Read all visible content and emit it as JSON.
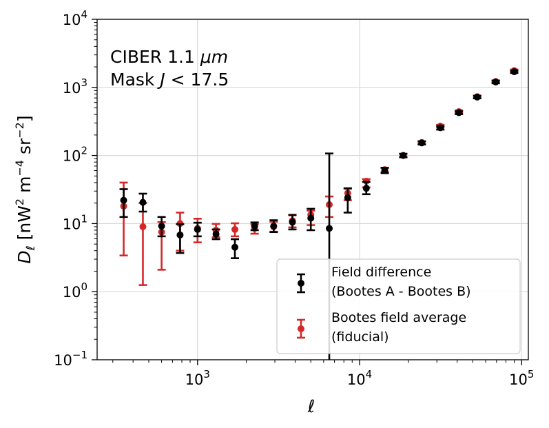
{
  "chart_data": {
    "type": "scatter",
    "title": "",
    "annotation": {
      "line1_prefix": "CIBER 1.1 ",
      "line1_unit": "μm",
      "line2_prefix": "Mask ",
      "line2_var": "J",
      "line2_suffix": " < 17.5"
    },
    "xlabel": "ℓ",
    "ylabel": {
      "symbol": "D",
      "subscript": "ℓ",
      "unit_prefix": " [nW",
      "unit_sup1": "2",
      "unit_mid": " m",
      "unit_sup2": "−4",
      "unit_mid2": " sr",
      "unit_sup3": "−2",
      "unit_suffix": "]"
    },
    "xscale": "log",
    "yscale": "log",
    "xlim": [
      240,
      110000
    ],
    "ylim": [
      0.1,
      10000
    ],
    "x_ticks": [
      {
        "value": 1000,
        "base": "10",
        "exp": "3"
      },
      {
        "value": 10000,
        "base": "10",
        "exp": "4"
      },
      {
        "value": 100000,
        "base": "10",
        "exp": "5"
      }
    ],
    "y_ticks": [
      {
        "value": 0.1,
        "base": "10",
        "exp": "−1"
      },
      {
        "value": 1,
        "base": "10",
        "exp": "0"
      },
      {
        "value": 10,
        "base": "10",
        "exp": "1"
      },
      {
        "value": 100,
        "base": "10",
        "exp": "2"
      },
      {
        "value": 1000,
        "base": "10",
        "exp": "3"
      },
      {
        "value": 10000,
        "base": "10",
        "exp": "4"
      }
    ],
    "grid": true,
    "legend_position": "bottom-right",
    "series": [
      {
        "name_line1": "Field difference",
        "name_line2": "(Bootes A - Bootes B)",
        "color": "#000000",
        "points": [
          {
            "x": 350,
            "y": 22,
            "lo": 12.5,
            "hi": 32
          },
          {
            "x": 460,
            "y": 20.5,
            "lo": 15,
            "hi": 27.5
          },
          {
            "x": 600,
            "y": 9.2,
            "lo": 6.5,
            "hi": 12.5
          },
          {
            "x": 780,
            "y": 6.8,
            "lo": 3.7,
            "hi": 9.8
          },
          {
            "x": 1000,
            "y": 8.2,
            "lo": 6.5,
            "hi": 10.3
          },
          {
            "x": 1300,
            "y": 7.0,
            "lo": 5.9,
            "hi": 8.2
          },
          {
            "x": 1700,
            "y": 4.5,
            "lo": 3.1,
            "hi": 5.9
          },
          {
            "x": 2250,
            "y": 9.2,
            "lo": 8.0,
            "hi": 10.4
          },
          {
            "x": 2950,
            "y": 9.2,
            "lo": 7.5,
            "hi": 11.2
          },
          {
            "x": 3850,
            "y": 10.5,
            "lo": 8.2,
            "hi": 13.3
          },
          {
            "x": 5000,
            "y": 12,
            "lo": 8.0,
            "hi": 16.5
          },
          {
            "x": 6500,
            "y": 8.5,
            "lo": 0.08,
            "hi": 107
          },
          {
            "x": 8450,
            "y": 24,
            "lo": 14.5,
            "hi": 33
          },
          {
            "x": 11000,
            "y": 33,
            "lo": 27,
            "hi": 41
          },
          {
            "x": 14300,
            "y": 60,
            "lo": 55,
            "hi": 66
          },
          {
            "x": 18600,
            "y": 100,
            "lo": 94,
            "hi": 106
          },
          {
            "x": 24200,
            "y": 153,
            "lo": 145,
            "hi": 161
          },
          {
            "x": 31500,
            "y": 255,
            "lo": 240,
            "hi": 270
          },
          {
            "x": 41000,
            "y": 425,
            "lo": 405,
            "hi": 445
          },
          {
            "x": 53200,
            "y": 720,
            "lo": 690,
            "hi": 750
          },
          {
            "x": 69200,
            "y": 1200,
            "lo": 1150,
            "hi": 1250
          },
          {
            "x": 90000,
            "y": 1700,
            "lo": 1630,
            "hi": 1770
          }
        ]
      },
      {
        "name_line1": "Bootes field average",
        "name_line2": "(fiducial)",
        "color": "#d62728",
        "points": [
          {
            "x": 350,
            "y": 18,
            "lo": 3.4,
            "hi": 40
          },
          {
            "x": 460,
            "y": 9,
            "lo": 1.25,
            "hi": 20
          },
          {
            "x": 600,
            "y": 7.5,
            "lo": 2.1,
            "hi": 10.5
          },
          {
            "x": 780,
            "y": 10,
            "lo": 4,
            "hi": 14.5
          },
          {
            "x": 1000,
            "y": 8.5,
            "lo": 5.3,
            "hi": 11.8
          },
          {
            "x": 1300,
            "y": 8,
            "lo": 6.3,
            "hi": 9.9
          },
          {
            "x": 1700,
            "y": 8.2,
            "lo": 6.5,
            "hi": 10.1
          },
          {
            "x": 2250,
            "y": 8.5,
            "lo": 7.1,
            "hi": 9.8
          },
          {
            "x": 2950,
            "y": 9,
            "lo": 7.6,
            "hi": 10.6
          },
          {
            "x": 3850,
            "y": 11,
            "lo": 8.8,
            "hi": 13.5
          },
          {
            "x": 5000,
            "y": 13.5,
            "lo": 9.5,
            "hi": 15.5
          },
          {
            "x": 6500,
            "y": 19,
            "lo": 12.5,
            "hi": 25
          },
          {
            "x": 8450,
            "y": 28,
            "lo": 22,
            "hi": 32.5
          },
          {
            "x": 11000,
            "y": 42,
            "lo": 34,
            "hi": 45
          },
          {
            "x": 14300,
            "y": 62,
            "lo": 57,
            "hi": 66
          },
          {
            "x": 18600,
            "y": 100,
            "lo": 95,
            "hi": 106
          },
          {
            "x": 24200,
            "y": 155,
            "lo": 147,
            "hi": 162
          },
          {
            "x": 31500,
            "y": 270,
            "lo": 258,
            "hi": 282
          },
          {
            "x": 41000,
            "y": 440,
            "lo": 420,
            "hi": 460
          },
          {
            "x": 53200,
            "y": 730,
            "lo": 700,
            "hi": 760
          },
          {
            "x": 69200,
            "y": 1220,
            "lo": 1170,
            "hi": 1270
          },
          {
            "x": 90000,
            "y": 1760,
            "lo": 1690,
            "hi": 1830
          }
        ]
      }
    ]
  }
}
